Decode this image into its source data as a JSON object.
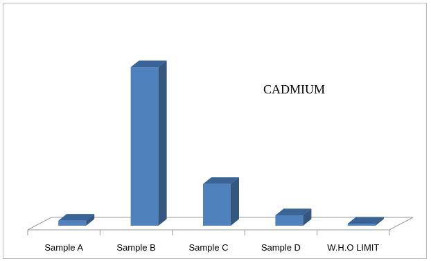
{
  "chart_data": {
    "type": "bar",
    "title": "CADMIUM",
    "categories": [
      "Sample A",
      "Sample B",
      "Sample C",
      "Sample D",
      "W.H.O LIMIT"
    ],
    "values": [
      0.12,
      3.8,
      1.0,
      0.25,
      0.005
    ],
    "xlabel": "",
    "ylabel": "",
    "ylim": [
      0,
      4
    ],
    "grid": false,
    "legend": "none",
    "style": "3d-column",
    "colors": {
      "bar_front": "#4f81bd",
      "bar_side": "#34577f",
      "bar_top": "#3a6496",
      "floor_line": "#9a9a9a"
    }
  }
}
